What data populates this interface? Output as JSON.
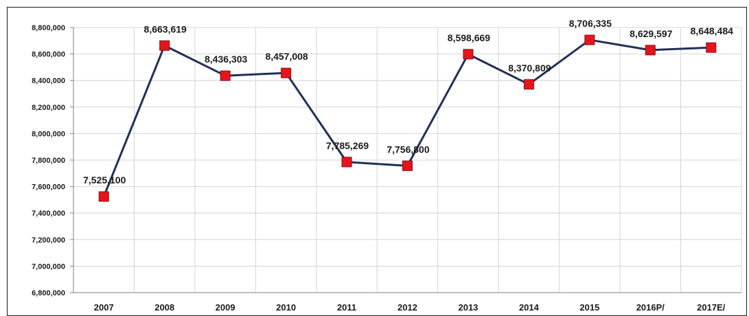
{
  "chart_data": {
    "type": "line",
    "categories": [
      "2007",
      "2008",
      "2009",
      "2010",
      "2011",
      "2012",
      "2013",
      "2014",
      "2015",
      "2016P/",
      "2017E/"
    ],
    "series": [
      {
        "values": [
          7525100,
          8663619,
          8436303,
          8457008,
          7785269,
          7756800,
          8598669,
          8370809,
          8706335,
          8629597,
          8648484
        ],
        "labels": [
          "7,525,100",
          "8,663,619",
          "8,436,303",
          "8,457,008",
          "7,785,269",
          "7,756,800",
          "8,598,669",
          "8,370,809",
          "8,706,335",
          "8,629,597",
          "8,648,484"
        ]
      }
    ],
    "y_ticks": [
      "6,800,000",
      "7,000,000",
      "7,200,000",
      "7,400,000",
      "7,600,000",
      "7,800,000",
      "8,000,000",
      "8,200,000",
      "8,400,000",
      "8,600,000",
      "8,800,000"
    ],
    "ylim": [
      6800000,
      8800000
    ],
    "grid": true,
    "legend": "none",
    "colors": {
      "line": "#1f2f5a",
      "marker": "#e8141b",
      "marker_edge": "#8a0d0f",
      "grid": "#d4d4d4",
      "axis": "#7f7f7f"
    }
  }
}
